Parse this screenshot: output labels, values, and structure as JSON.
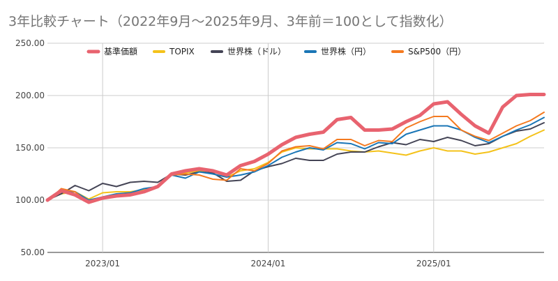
{
  "chart_data": {
    "type": "line",
    "title": "3年比較チャート（2022年9月～2025年9月、3年前＝100として指数化）",
    "xlabel": "",
    "ylabel": "",
    "ylim": [
      50,
      250
    ],
    "y_ticks": [
      "50.00",
      "100.00",
      "150.00",
      "200.00",
      "250.00"
    ],
    "x": [
      "2022/09",
      "2022/10",
      "2022/11",
      "2022/12",
      "2023/01",
      "2023/02",
      "2023/03",
      "2023/04",
      "2023/05",
      "2023/06",
      "2023/07",
      "2023/08",
      "2023/09",
      "2023/10",
      "2023/11",
      "2023/12",
      "2024/01",
      "2024/02",
      "2024/03",
      "2024/04",
      "2024/05",
      "2024/06",
      "2024/07",
      "2024/08",
      "2024/09",
      "2024/10",
      "2024/11",
      "2024/12",
      "2025/01",
      "2025/02",
      "2025/03",
      "2025/04",
      "2025/05",
      "2025/06",
      "2025/07",
      "2025/08",
      "2025/09"
    ],
    "x_tick_labels": [
      {
        "x": "2023/01",
        "label": "2023/01"
      },
      {
        "x": "2024/01",
        "label": "2024/01"
      },
      {
        "x": "2025/01",
        "label": "2025/01"
      }
    ],
    "grid": "vertical gridlines at year ticks, horizontal gridlines at y ticks",
    "legend_position": "top",
    "series": [
      {
        "name": "基準価額",
        "color": "#e8636f",
        "width": 5,
        "values": [
          100,
          109,
          105,
          98,
          102,
          104,
          105,
          108,
          113,
          125,
          128,
          130,
          128,
          124,
          133,
          137,
          144,
          153,
          160,
          163,
          165,
          177,
          179,
          167,
          167,
          168,
          175,
          181,
          192,
          194,
          182,
          171,
          164,
          189,
          200,
          201,
          201
        ]
      },
      {
        "name": "TOPIX",
        "color": "#f4c21a",
        "width": 2,
        "values": [
          101,
          106,
          108,
          101,
          107,
          108,
          108,
          110,
          112,
          124,
          126,
          128,
          125,
          122,
          128,
          130,
          136,
          146,
          150,
          149,
          149,
          149,
          147,
          146,
          147,
          145,
          143,
          147,
          150,
          147,
          147,
          144,
          146,
          150,
          154,
          161,
          167
        ]
      },
      {
        "name": "世界株（ドル）",
        "color": "#444455",
        "width": 2,
        "values": [
          100,
          106,
          114,
          109,
          116,
          113,
          117,
          118,
          117,
          125,
          124,
          127,
          126,
          118,
          119,
          128,
          132,
          135,
          140,
          138,
          138,
          144,
          146,
          146,
          151,
          155,
          153,
          158,
          156,
          160,
          157,
          152,
          154,
          161,
          166,
          168,
          174
        ]
      },
      {
        "name": "世界株（円）",
        "color": "#1a76b6",
        "width": 2,
        "values": [
          101,
          109,
          108,
          100,
          103,
          106,
          107,
          111,
          113,
          124,
          121,
          127,
          125,
          122,
          124,
          127,
          133,
          141,
          146,
          150,
          148,
          155,
          154,
          149,
          155,
          154,
          163,
          167,
          171,
          171,
          167,
          160,
          155,
          161,
          167,
          172,
          179
        ]
      },
      {
        "name": "S&P500（円）",
        "color": "#f47a20",
        "width": 2,
        "values": [
          99,
          111,
          108,
          97,
          101,
          105,
          106,
          109,
          112,
          124,
          125,
          124,
          120,
          119,
          130,
          128,
          135,
          147,
          151,
          152,
          149,
          158,
          158,
          152,
          157,
          156,
          169,
          175,
          180,
          180,
          167,
          161,
          157,
          164,
          171,
          176,
          184
        ]
      }
    ]
  }
}
